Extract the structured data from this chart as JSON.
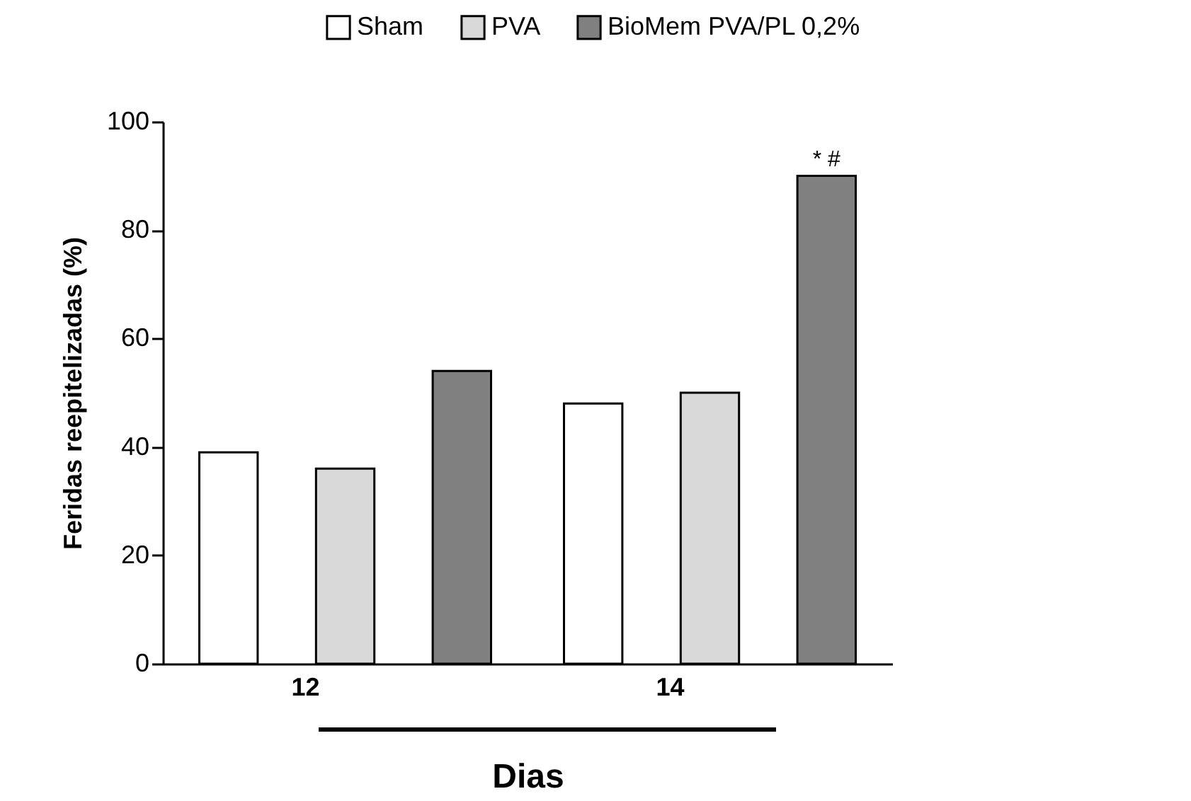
{
  "chart_data": {
    "type": "bar",
    "xlabel": "Dias",
    "ylabel": "Feridas reepitelizadas (%)",
    "categories": [
      "12",
      "14"
    ],
    "series": [
      {
        "name": "Sham",
        "color": "#ffffff",
        "values": [
          39,
          48
        ]
      },
      {
        "name": "PVA",
        "color": "#d9d9d9",
        "values": [
          36,
          50
        ]
      },
      {
        "name": "BioMem PVA/PL 0,2%",
        "color": "#808080",
        "values": [
          54,
          90
        ]
      }
    ],
    "ylim": [
      0,
      100
    ],
    "yticks": [
      0,
      20,
      40,
      60,
      80,
      100
    ],
    "grid": false,
    "legend": "top right",
    "annotations": [
      "* #"
    ]
  }
}
